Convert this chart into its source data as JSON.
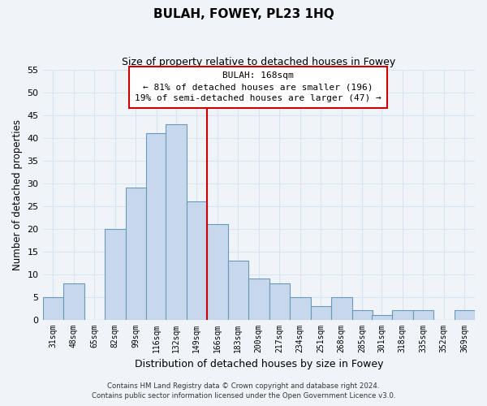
{
  "title": "BULAH, FOWEY, PL23 1HQ",
  "subtitle": "Size of property relative to detached houses in Fowey",
  "xlabel": "Distribution of detached houses by size in Fowey",
  "ylabel": "Number of detached properties",
  "bin_labels": [
    "31sqm",
    "48sqm",
    "65sqm",
    "82sqm",
    "99sqm",
    "116sqm",
    "132sqm",
    "149sqm",
    "166sqm",
    "183sqm",
    "200sqm",
    "217sqm",
    "234sqm",
    "251sqm",
    "268sqm",
    "285sqm",
    "301sqm",
    "318sqm",
    "335sqm",
    "352sqm",
    "369sqm"
  ],
  "bin_edges": [
    31,
    48,
    65,
    82,
    99,
    116,
    132,
    149,
    166,
    183,
    200,
    217,
    234,
    251,
    268,
    285,
    301,
    318,
    335,
    352,
    369,
    386
  ],
  "counts": [
    5,
    8,
    0,
    20,
    29,
    41,
    43,
    26,
    21,
    13,
    9,
    8,
    5,
    3,
    5,
    2,
    1,
    2,
    2,
    0,
    2
  ],
  "bar_color": "#c8d8ec",
  "bar_edge_color": "#6699bb",
  "vline_x": 166,
  "vline_color": "#cc0000",
  "annotation_title": "BULAH: 168sqm",
  "annotation_line1": "← 81% of detached houses are smaller (196)",
  "annotation_line2": "19% of semi-detached houses are larger (47) →",
  "annotation_box_facecolor": "#ffffff",
  "annotation_box_edgecolor": "#cc0000",
  "ylim": [
    0,
    55
  ],
  "yticks": [
    0,
    5,
    10,
    15,
    20,
    25,
    30,
    35,
    40,
    45,
    50,
    55
  ],
  "background_color": "#f0f4f9",
  "grid_color": "#d8e4f0",
  "footer_line1": "Contains HM Land Registry data © Crown copyright and database right 2024.",
  "footer_line2": "Contains public sector information licensed under the Open Government Licence v3.0."
}
